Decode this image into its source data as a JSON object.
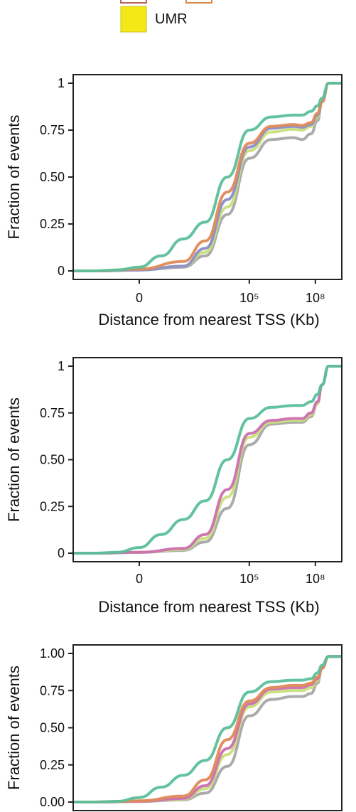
{
  "legend": {
    "items": [
      {
        "label": "",
        "color": "#b5655e"
      },
      {
        "label": "",
        "color": "#d9894a"
      },
      {
        "label": "UMR",
        "color": "#f4e817"
      }
    ]
  },
  "colors": {
    "teal": "#5bbf9a",
    "orange": "#e08a58",
    "purple": "#8a8ec8",
    "pink": "#cc6fb0",
    "lightgreen": "#c7e07a",
    "gray": "#a6a6a6",
    "axis": "#222222"
  },
  "chart_data": [
    {
      "type": "line",
      "title": "",
      "xlabel": "Distance from nearest TSS (Kb)",
      "ylabel": "Fraction of events",
      "xlim": [
        -3,
        9.2
      ],
      "ylim": [
        0,
        1
      ],
      "xticks": [
        {
          "value": 0,
          "label": "0"
        },
        {
          "value": 5,
          "label": "10⁵"
        },
        {
          "value": 8,
          "label": "10⁸"
        }
      ],
      "yticks": [
        {
          "value": 0,
          "label": "0"
        },
        {
          "value": 0.25,
          "label": "0.25"
        },
        {
          "value": 0.5,
          "label": "0.50"
        },
        {
          "value": 0.75,
          "label": "0.75"
        },
        {
          "value": 1,
          "label": "1"
        }
      ],
      "series": [
        {
          "color": "#a6a6a6",
          "x": [
            -3.8,
            -2,
            0,
            2,
            3,
            4,
            5,
            6,
            7,
            7.4,
            7.8,
            8.1,
            8.3,
            8.6,
            9.2
          ],
          "y": [
            0,
            0,
            0.005,
            0.02,
            0.08,
            0.3,
            0.6,
            0.7,
            0.71,
            0.7,
            0.73,
            0.8,
            0.9,
            1,
            1
          ]
        },
        {
          "color": "#c7e07a",
          "x": [
            -3.8,
            -2,
            0,
            2,
            3,
            4,
            5,
            6,
            7,
            7.4,
            7.8,
            8.1,
            8.3,
            8.6,
            9.2
          ],
          "y": [
            0,
            0,
            0.006,
            0.025,
            0.1,
            0.34,
            0.64,
            0.74,
            0.755,
            0.75,
            0.77,
            0.82,
            0.9,
            1,
            1
          ]
        },
        {
          "color": "#8a8ec8",
          "x": [
            -3.8,
            -2,
            0,
            2,
            3,
            4,
            5,
            6,
            7,
            7.4,
            7.8,
            8.1,
            8.3,
            8.6,
            9.2
          ],
          "y": [
            0,
            0,
            0.005,
            0.025,
            0.12,
            0.38,
            0.66,
            0.76,
            0.77,
            0.765,
            0.78,
            0.83,
            0.9,
            1,
            1
          ]
        },
        {
          "color": "#e08a58",
          "x": [
            -3.8,
            -2,
            0,
            2,
            3,
            4,
            5,
            6,
            7,
            7.4,
            7.8,
            8.1,
            8.3,
            8.6,
            9.2
          ],
          "y": [
            0,
            0,
            0.01,
            0.05,
            0.16,
            0.42,
            0.68,
            0.77,
            0.78,
            0.775,
            0.79,
            0.84,
            0.9,
            1,
            1
          ]
        },
        {
          "color": "#5bbf9a",
          "x": [
            -3.8,
            -2,
            -1,
            0,
            1,
            2,
            3,
            4,
            5,
            6,
            7,
            7.4,
            7.8,
            8.1,
            8.3,
            8.6,
            9.2
          ],
          "y": [
            0,
            0,
            0.005,
            0.02,
            0.08,
            0.17,
            0.26,
            0.5,
            0.75,
            0.82,
            0.83,
            0.83,
            0.85,
            0.88,
            0.92,
            1,
            1
          ]
        }
      ]
    },
    {
      "type": "line",
      "title": "",
      "xlabel": "Distance from nearest TSS (Kb)",
      "ylabel": "Fraction of events",
      "xlim": [
        -3,
        9.2
      ],
      "ylim": [
        0,
        1
      ],
      "xticks": [
        {
          "value": 0,
          "label": "0"
        },
        {
          "value": 5,
          "label": "10⁵"
        },
        {
          "value": 8,
          "label": "10⁸"
        }
      ],
      "yticks": [
        {
          "value": 0,
          "label": "0"
        },
        {
          "value": 0.25,
          "label": "0.25"
        },
        {
          "value": 0.5,
          "label": "0.50"
        },
        {
          "value": 0.75,
          "label": "0.75"
        },
        {
          "value": 1,
          "label": "1"
        }
      ],
      "series": [
        {
          "color": "#a6a6a6",
          "x": [
            -3.8,
            -2,
            0,
            2,
            3,
            4,
            5,
            6,
            7,
            7.4,
            7.8,
            8.1,
            8.3,
            8.6,
            9.2
          ],
          "y": [
            0,
            0,
            0.004,
            0.015,
            0.06,
            0.24,
            0.58,
            0.69,
            0.7,
            0.7,
            0.73,
            0.8,
            0.9,
            1,
            1
          ]
        },
        {
          "color": "#c7e07a",
          "x": [
            -3.8,
            -2,
            0,
            2,
            3,
            4,
            5,
            6,
            7,
            7.4,
            7.8,
            8.1,
            8.3,
            8.6,
            9.2
          ],
          "y": [
            0,
            0,
            0.005,
            0.02,
            0.08,
            0.3,
            0.62,
            0.7,
            0.71,
            0.71,
            0.74,
            0.8,
            0.9,
            1,
            1
          ]
        },
        {
          "color": "#cc6fb0",
          "x": [
            -3.8,
            -2,
            0,
            2,
            3,
            4,
            5,
            6,
            7,
            7.4,
            7.8,
            8.1,
            8.3,
            8.6,
            9.2
          ],
          "y": [
            0,
            0,
            0.005,
            0.025,
            0.1,
            0.34,
            0.64,
            0.71,
            0.72,
            0.72,
            0.75,
            0.81,
            0.9,
            1,
            1
          ]
        },
        {
          "color": "#5bbf9a",
          "x": [
            -3.8,
            -2,
            -1,
            0,
            1,
            2,
            3,
            4,
            5,
            6,
            7,
            7.4,
            7.8,
            8.1,
            8.3,
            8.6,
            9.2
          ],
          "y": [
            0,
            0,
            0.005,
            0.03,
            0.1,
            0.18,
            0.28,
            0.5,
            0.72,
            0.78,
            0.79,
            0.79,
            0.81,
            0.85,
            0.9,
            1,
            1
          ]
        }
      ]
    },
    {
      "type": "line",
      "title": "",
      "xlabel": "",
      "ylabel": "Fraction of events",
      "xlim": [
        -3,
        9.2
      ],
      "ylim": [
        0,
        1
      ],
      "xticks": [],
      "yticks": [
        {
          "value": 0,
          "label": "0.00"
        },
        {
          "value": 0.25,
          "label": "0.25"
        },
        {
          "value": 0.5,
          "label": "0.50"
        },
        {
          "value": 0.75,
          "label": "0.75"
        },
        {
          "value": 1,
          "label": "1.00"
        }
      ],
      "series": [
        {
          "color": "#a6a6a6",
          "x": [
            -3.8,
            -2,
            0,
            2,
            3,
            4,
            5,
            6,
            7,
            7.4,
            7.8,
            8.1,
            8.3,
            8.6,
            9.2
          ],
          "y": [
            0,
            0,
            0.004,
            0.015,
            0.06,
            0.24,
            0.58,
            0.69,
            0.71,
            0.71,
            0.73,
            0.8,
            0.9,
            0.98,
            0.98
          ]
        },
        {
          "color": "#c7e07a",
          "x": [
            -3.8,
            -2,
            0,
            2,
            3,
            4,
            5,
            6,
            7,
            7.4,
            7.8,
            8.1,
            8.3,
            8.6,
            9.2
          ],
          "y": [
            0,
            0,
            0.005,
            0.02,
            0.09,
            0.32,
            0.64,
            0.74,
            0.75,
            0.75,
            0.77,
            0.82,
            0.9,
            0.98,
            0.98
          ]
        },
        {
          "color": "#cc6fb0",
          "x": [
            -3.8,
            -2,
            0,
            2,
            3,
            4,
            5,
            6,
            7,
            7.4,
            7.8,
            8.1,
            8.3,
            8.6,
            9.2
          ],
          "y": [
            0,
            0,
            0.005,
            0.025,
            0.11,
            0.36,
            0.66,
            0.76,
            0.77,
            0.77,
            0.79,
            0.83,
            0.9,
            0.98,
            0.98
          ]
        },
        {
          "color": "#e08a58",
          "x": [
            -3.8,
            -2,
            0,
            2,
            3,
            4,
            5,
            6,
            7,
            7.4,
            7.8,
            8.1,
            8.3,
            8.6,
            9.2
          ],
          "y": [
            0,
            0,
            0.008,
            0.04,
            0.15,
            0.42,
            0.68,
            0.77,
            0.785,
            0.785,
            0.8,
            0.84,
            0.9,
            0.98,
            0.98
          ]
        },
        {
          "color": "#5bbf9a",
          "x": [
            -3.8,
            -2,
            -1,
            0,
            1,
            2,
            3,
            4,
            5,
            6,
            7,
            7.4,
            7.8,
            8.1,
            8.3,
            8.6,
            9.2
          ],
          "y": [
            0,
            0,
            0.005,
            0.03,
            0.1,
            0.18,
            0.28,
            0.5,
            0.74,
            0.81,
            0.82,
            0.82,
            0.83,
            0.87,
            0.92,
            0.98,
            0.98
          ]
        }
      ]
    }
  ]
}
